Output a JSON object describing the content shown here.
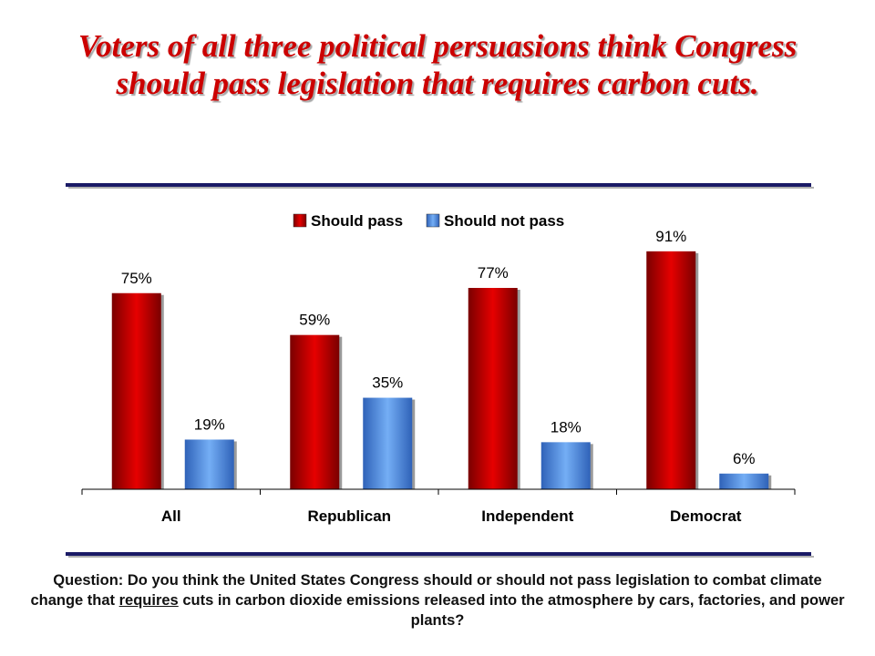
{
  "title": "Voters of all three political persuasions think Congress should pass legislation that requires carbon cuts.",
  "question": {
    "before": "Question: Do you think the United States Congress should or should not pass legislation to combat climate change that ",
    "emphasis": "requires",
    "after": " cuts in carbon dioxide emissions released into the atmosphere by cars, factories, and power plants?"
  },
  "chart_data": {
    "type": "bar",
    "categories": [
      "All",
      "Republican",
      "Independent",
      "Democrat"
    ],
    "series": [
      {
        "name": "Should pass",
        "values": [
          75,
          59,
          77,
          91
        ],
        "labels": [
          "75%",
          "59%",
          "77%",
          "91%"
        ],
        "color": "#cc0000"
      },
      {
        "name": "Should not pass",
        "values": [
          19,
          35,
          18,
          6
        ],
        "labels": [
          "19%",
          "35%",
          "18%",
          "6%"
        ],
        "color": "#4f8fe8"
      }
    ],
    "ylim": [
      0,
      100
    ],
    "grid": false,
    "legend": "top-center",
    "title": "",
    "xlabel": "",
    "ylabel": ""
  }
}
